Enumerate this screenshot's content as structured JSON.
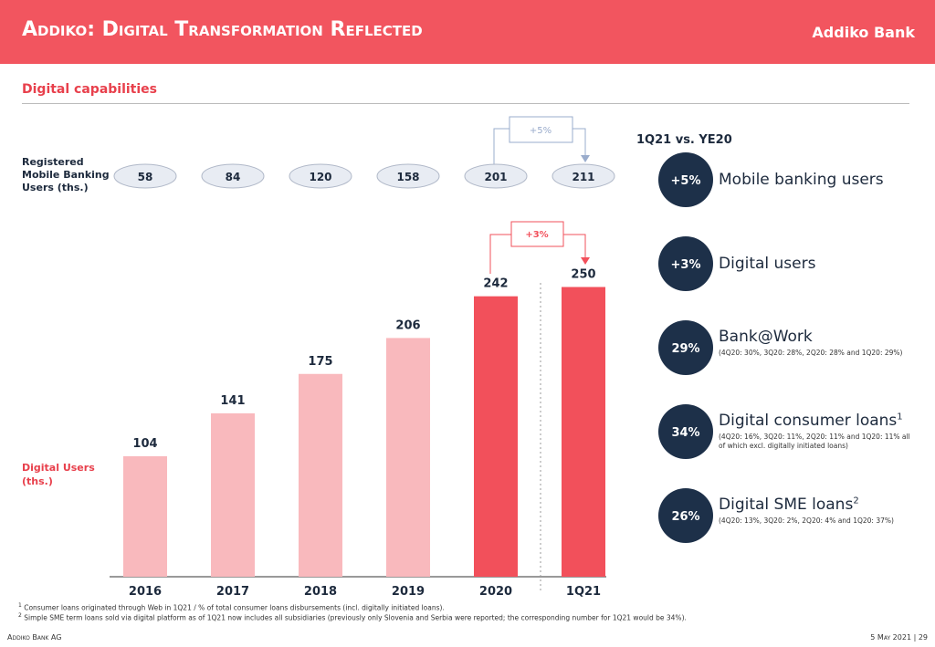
{
  "header": {
    "title": "Addiko: Digital Transformation Reflected",
    "logo": "Addiko Bank"
  },
  "section": "Digital capabilities",
  "chart_data": {
    "type": "bar",
    "categories": [
      "2016",
      "2017",
      "2018",
      "2019",
      "2020",
      "1Q21"
    ],
    "series": [
      {
        "name": "Registered Mobile Banking Users (ths.)",
        "values": [
          58,
          84,
          120,
          158,
          201,
          211
        ]
      },
      {
        "name": "Digital Users (ths.)",
        "values": [
          104,
          141,
          175,
          206,
          242,
          250
        ],
        "colors": [
          "#f9b9bd",
          "#f9b9bd",
          "#f9b9bd",
          "#f9b9bd",
          "#f2505b",
          "#f2505b"
        ]
      }
    ],
    "annotations": [
      "+5%",
      "+3%"
    ]
  },
  "kpis": {
    "title": "1Q21 vs. YE20",
    "items": [
      {
        "value": "+5%",
        "label": "Mobile banking users"
      },
      {
        "value": "+3%",
        "label": "Digital users"
      },
      {
        "value": "29%",
        "label": "Bank@Work",
        "note": "(4Q20: 30%, 3Q20: 28%, 2Q20: 28% and 1Q20: 29%)"
      },
      {
        "value": "34%",
        "label": "Digital consumer loans",
        "sup": "1",
        "note": "(4Q20: 16%, 3Q20: 11%, 2Q20: 11% and 1Q20: 11% all of which excl. digitally initiated loans)"
      },
      {
        "value": "26%",
        "label": "Digital SME loans",
        "sup": "2",
        "note": "(4Q20: 13%, 3Q20: 2%, 2Q20: 4% and 1Q20: 37%)"
      }
    ]
  },
  "footnotes": [
    {
      "marker": "1",
      "text": "Consumer loans originated through Web in 1Q21 / % of total consumer loans disbursements (incl. digitally initiated loans)."
    },
    {
      "marker": "2",
      "text": "Simple SME term loans sold via digital platform as of 1Q21 now includes all subsidiaries (previously only Slovenia and Serbia were reported; the corresponding number for 1Q21 would be 34%)."
    }
  ],
  "footer": {
    "left": "Addiko Bank AG",
    "right": "5 May 2021 | 29"
  }
}
